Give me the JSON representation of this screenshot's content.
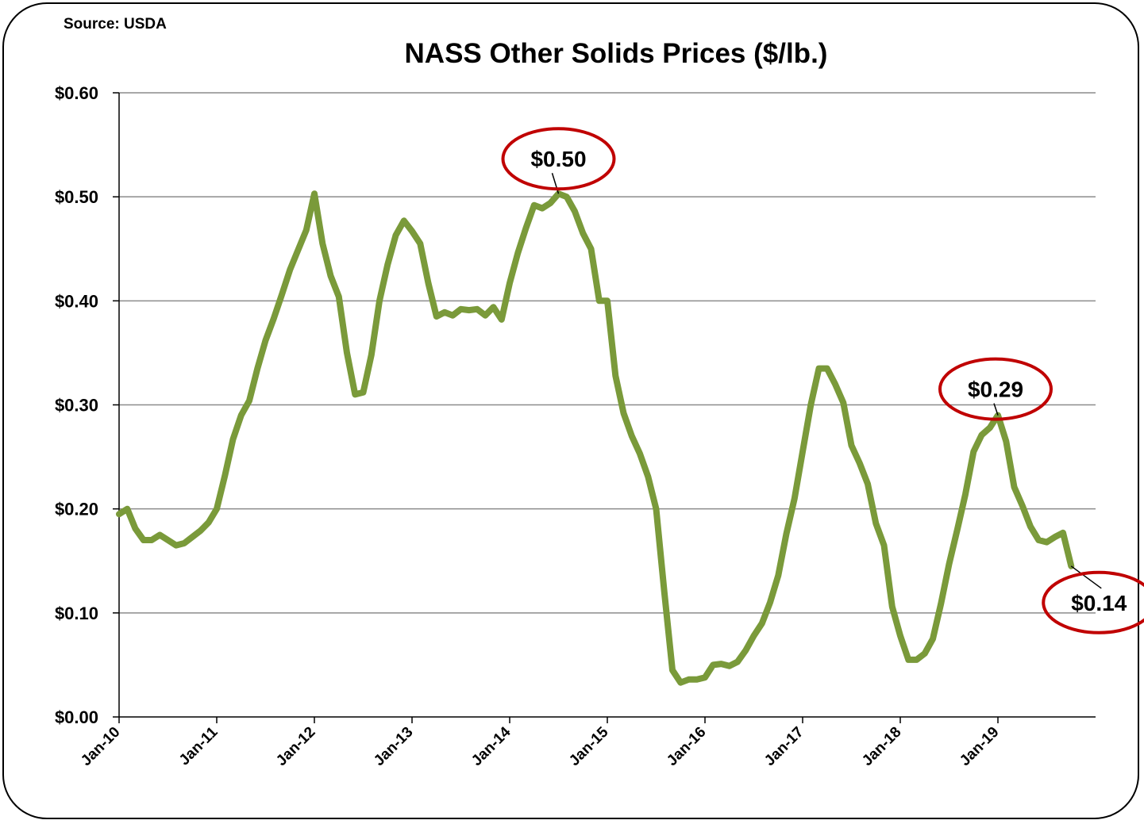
{
  "chart_data": {
    "type": "line",
    "source": "Source: USDA",
    "title": "NASS Other Solids Prices ($/lb.)",
    "xlabel": "",
    "ylabel": "",
    "ylim": [
      0,
      0.6
    ],
    "yticks": [
      0.0,
      0.1,
      0.2,
      0.3,
      0.4,
      0.5,
      0.6
    ],
    "ytick_labels": [
      "$0.00",
      "$0.10",
      "$0.20",
      "$0.30",
      "$0.40",
      "$0.50",
      "$0.60"
    ],
    "xtick_labels": [
      "Jan-10",
      "Jan-11",
      "Jan-12",
      "Jan-13",
      "Jan-14",
      "Jan-15",
      "Jan-16",
      "Jan-17",
      "Jan-18",
      "Jan-19"
    ],
    "grid": true,
    "line_color": "#7a9a3a",
    "callout_color": "#c00000",
    "series": [
      {
        "x": [
          "2010-01",
          "2010-02",
          "2010-03",
          "2010-04",
          "2010-05",
          "2010-06",
          "2010-07",
          "2010-08",
          "2010-09",
          "2010-10",
          "2010-11",
          "2010-12",
          "2011-01",
          "2011-02",
          "2011-03",
          "2011-04",
          "2011-05",
          "2011-06",
          "2011-07",
          "2011-08",
          "2011-09",
          "2011-10",
          "2011-11",
          "2011-12",
          "2012-01",
          "2012-02",
          "2012-03",
          "2012-04",
          "2012-05",
          "2012-06",
          "2012-07",
          "2012-08",
          "2012-09",
          "2012-10",
          "2012-11",
          "2012-12",
          "2013-01",
          "2013-02",
          "2013-03",
          "2013-04",
          "2013-05",
          "2013-06",
          "2013-07",
          "2013-08",
          "2013-09",
          "2013-10",
          "2013-11",
          "2013-12",
          "2014-01",
          "2014-02",
          "2014-03",
          "2014-04",
          "2014-05",
          "2014-06",
          "2014-07",
          "2014-08",
          "2014-09",
          "2014-10",
          "2014-11",
          "2014-12",
          "2015-01",
          "2015-02",
          "2015-03",
          "2015-04",
          "2015-05",
          "2015-06",
          "2015-07",
          "2015-08",
          "2015-09",
          "2015-10",
          "2015-11",
          "2015-12",
          "2016-01",
          "2016-02",
          "2016-03",
          "2016-04",
          "2016-05",
          "2016-06",
          "2016-07",
          "2016-08",
          "2016-09",
          "2016-10",
          "2016-11",
          "2016-12",
          "2017-01",
          "2017-02",
          "2017-03",
          "2017-04",
          "2017-05",
          "2017-06",
          "2017-07",
          "2017-08",
          "2017-09",
          "2017-10",
          "2017-11",
          "2017-12",
          "2018-01",
          "2018-02",
          "2018-03",
          "2018-04",
          "2018-05",
          "2018-06",
          "2018-07",
          "2018-08",
          "2018-09",
          "2018-10",
          "2018-11",
          "2018-12",
          "2019-01",
          "2019-02",
          "2019-03",
          "2019-04",
          "2019-05",
          "2019-06",
          "2019-07",
          "2019-08",
          "2019-09",
          "2019-10"
        ],
        "values": [
          0.195,
          0.2,
          0.181,
          0.17,
          0.17,
          0.175,
          0.17,
          0.165,
          0.167,
          0.173,
          0.179,
          0.187,
          0.2,
          0.232,
          0.267,
          0.29,
          0.304,
          0.335,
          0.362,
          0.383,
          0.406,
          0.43,
          0.449,
          0.468,
          0.503,
          0.455,
          0.424,
          0.404,
          0.35,
          0.31,
          0.312,
          0.348,
          0.4,
          0.435,
          0.463,
          0.477,
          0.467,
          0.455,
          0.417,
          0.385,
          0.389,
          0.386,
          0.392,
          0.391,
          0.392,
          0.386,
          0.394,
          0.382,
          0.417,
          0.446,
          0.47,
          0.492,
          0.489,
          0.494,
          0.503,
          0.5,
          0.486,
          0.465,
          0.45,
          0.4,
          0.4,
          0.328,
          0.292,
          0.27,
          0.253,
          0.231,
          0.2,
          0.12,
          0.045,
          0.033,
          0.036,
          0.036,
          0.038,
          0.05,
          0.051,
          0.049,
          0.053,
          0.064,
          0.078,
          0.09,
          0.11,
          0.136,
          0.176,
          0.21,
          0.255,
          0.3,
          0.335,
          0.335,
          0.32,
          0.302,
          0.261,
          0.244,
          0.224,
          0.186,
          0.165,
          0.106,
          0.078,
          0.055,
          0.055,
          0.061,
          0.075,
          0.109,
          0.147,
          0.18,
          0.214,
          0.255,
          0.271,
          0.278,
          0.29,
          0.265,
          0.221,
          0.203,
          0.183,
          0.17,
          0.168,
          0.173,
          0.177,
          0.145
        ]
      }
    ],
    "callouts": [
      {
        "text": "$0.50",
        "x": "2014-07",
        "value": 0.503
      },
      {
        "text": "$0.29",
        "x": "2019-01",
        "value": 0.29
      },
      {
        "text": "$0.14",
        "x": "2019-10",
        "value": 0.145
      }
    ]
  }
}
